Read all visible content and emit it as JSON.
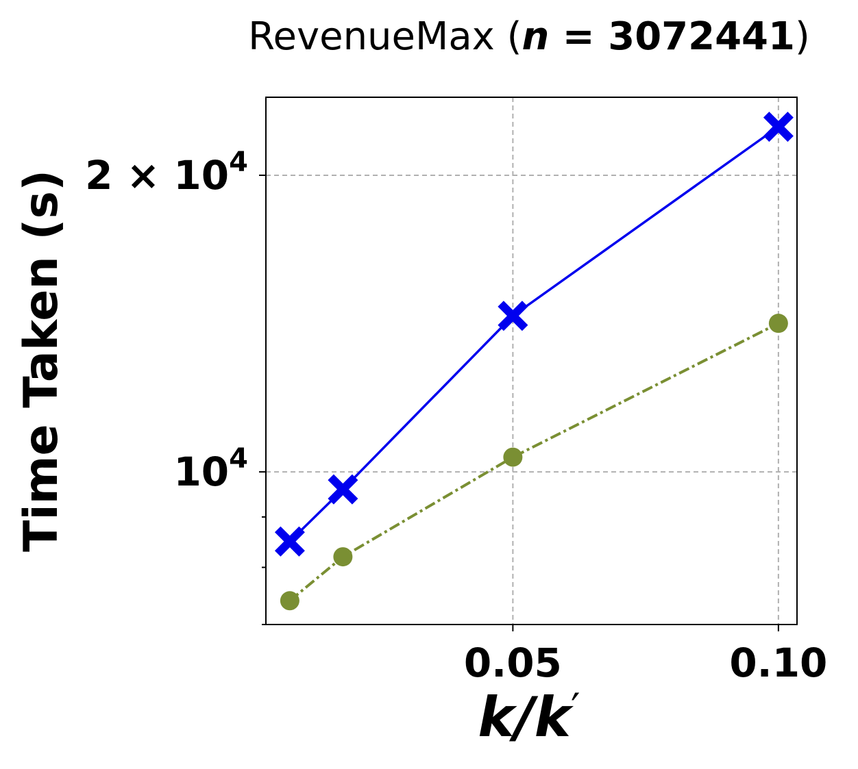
{
  "chart_data": {
    "type": "line",
    "title": {
      "prefix": "RevenueMax (",
      "var": "n",
      "eq": " = ",
      "value": "3072441",
      "suffix": ")"
    },
    "xlabel": {
      "a": "k",
      "slash": "/",
      "b": "k",
      "prime": "′"
    },
    "ylabel": "Time Taken (s)",
    "yscale": "log",
    "xlim": [
      0.0035,
      0.1035
    ],
    "ylim": [
      7000,
      24000
    ],
    "x_ticks": [
      {
        "value": 0.05,
        "label": "0.05"
      },
      {
        "value": 0.1,
        "label": "0.10"
      }
    ],
    "y_ticks": [
      {
        "value": 10000,
        "base": "10",
        "exp": "4"
      },
      {
        "value": 20000,
        "base": "2 × 10",
        "exp": "4"
      }
    ],
    "y_minor_ticks": [
      7000,
      8000,
      9000
    ],
    "grid": true,
    "series": [
      {
        "color": "#0000ee",
        "marker": "X",
        "linestyle": "solid",
        "x": [
          0.008,
          0.018,
          0.05,
          0.1
        ],
        "y": [
          8500,
          9600,
          14400,
          22400
        ]
      },
      {
        "color": "#7a8f33",
        "marker": "o",
        "linestyle": "dashdot",
        "x": [
          0.008,
          0.018,
          0.05,
          0.1
        ],
        "y": [
          7400,
          8200,
          10350,
          14150
        ]
      }
    ]
  }
}
